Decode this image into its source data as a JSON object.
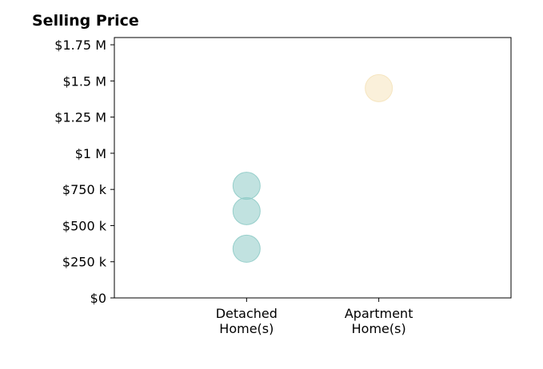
{
  "chart_data": {
    "type": "scatter",
    "title": "Selling Price",
    "xlabel": "",
    "ylabel": "",
    "categories": [
      "Detached\nHome(s)",
      "Apartment\nHome(s)"
    ],
    "x_positions": [
      1,
      2
    ],
    "xlim": [
      0,
      3
    ],
    "ylim": [
      0,
      1800000
    ],
    "y_ticks": [
      0,
      250000,
      500000,
      750000,
      1000000,
      1250000,
      1500000,
      1750000
    ],
    "y_tick_labels": [
      "$0",
      "$250 k",
      "$500 k",
      "$750 k",
      "$1 M",
      "$1.25 M",
      "$1.5 M",
      "$1.75 M"
    ],
    "grid": false,
    "legend": "none",
    "points": [
      {
        "category": "Detached\nHome(s)",
        "x": 1,
        "y": 340000,
        "color": "#8ecbc6"
      },
      {
        "category": "Detached\nHome(s)",
        "x": 1,
        "y": 600000,
        "color": "#8ecbc6"
      },
      {
        "category": "Detached\nHome(s)",
        "x": 1,
        "y": 775000,
        "color": "#8ecbc6"
      },
      {
        "category": "Apartment\nHome(s)",
        "x": 2,
        "y": 1450000,
        "color": "#f5e3bb"
      }
    ]
  }
}
